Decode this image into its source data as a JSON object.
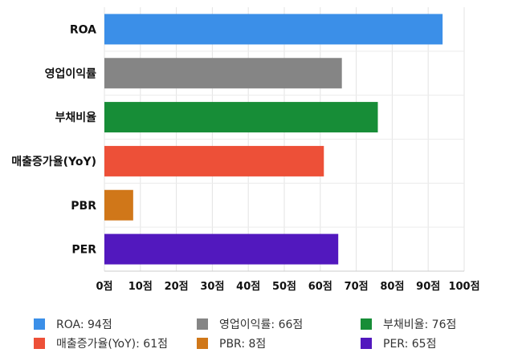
{
  "chart_data": {
    "type": "bar",
    "orientation": "horizontal",
    "categories": [
      "ROA",
      "영업이익률",
      "부채비율",
      "매출증가율(YoY)",
      "PBR",
      "PER"
    ],
    "values": [
      94,
      66,
      76,
      61,
      8,
      65
    ],
    "colors": [
      "#3b8fe8",
      "#858585",
      "#178d37",
      "#ed5038",
      "#d07719",
      "#5218be"
    ],
    "xlim": [
      0,
      100
    ],
    "xticks": [
      "0점",
      "10점",
      "20점",
      "30점",
      "40점",
      "50점",
      "60점",
      "70점",
      "80점",
      "90점",
      "100점"
    ],
    "grid": true,
    "legend_position": "bottom",
    "legend": [
      "ROA: 94점",
      "영업이익률: 66점",
      "부채비율: 76점",
      "매출증가율(YoY): 61점",
      "PBR: 8점",
      "PER: 65점"
    ]
  }
}
